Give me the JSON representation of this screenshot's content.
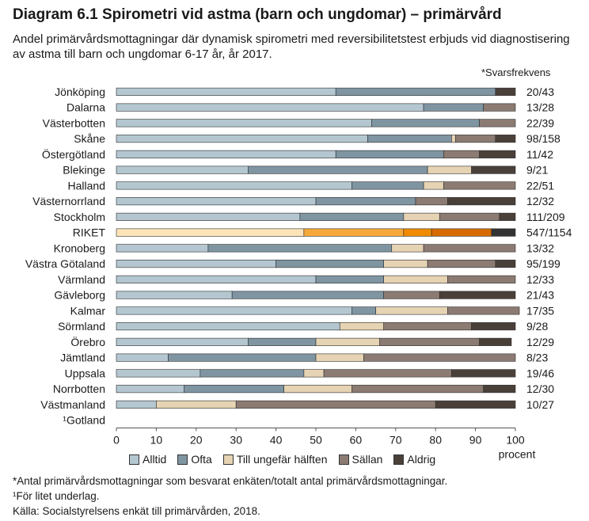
{
  "header": {
    "title": "Diagram 6.1 Spirometri vid astma (barn och ungdomar) – primärvård",
    "subtitle": "Andel primärvårdsmottagningar där dynamisk spirometri med reversibilitetstest erbjuds vid diagnostisering av astma till barn och ungdomar 6-17 år, år 2017."
  },
  "svarsfrekvens_label": "*Svarsfrekvens",
  "chart_data": {
    "type": "bar",
    "orientation": "horizontal",
    "stacked": true,
    "xlim": [
      0,
      100
    ],
    "xticks": [
      0,
      10,
      20,
      30,
      40,
      50,
      60,
      70,
      80,
      90,
      100
    ],
    "xlabel": "procent",
    "legend_position": "bottom",
    "categories": [
      "Jönköping",
      "Dalarna",
      "Västerbotten",
      "Skåne",
      "Östergötland",
      "Blekinge",
      "Halland",
      "Västernorrland",
      "Stockholm",
      "RIKET",
      "Kronoberg",
      "Västra Götaland",
      "Värmland",
      "Gävleborg",
      "Kalmar",
      "Sörmland",
      "Örebro",
      "Jämtland",
      "Uppsala",
      "Norrbotten",
      "Västmanland",
      "¹Gotland"
    ],
    "response_rates": [
      "20/43",
      "13/28",
      "22/39",
      "98/158",
      "11/42",
      "9/21",
      "22/51",
      "12/32",
      "111/209",
      "547/1154",
      "13/32",
      "95/199",
      "12/33",
      "21/43",
      "17/35",
      "9/28",
      "12/29",
      "8/23",
      "19/46",
      "12/30",
      "10/27",
      ""
    ],
    "highlight_category": "RIKET",
    "series": [
      {
        "name": "Alltid",
        "color": "#b4c7d1",
        "highlight_color": "#fde3b8",
        "values": [
          55,
          77,
          64,
          63,
          55,
          33,
          59,
          50,
          46,
          47,
          23,
          40,
          50,
          29,
          59,
          56,
          33,
          13,
          21,
          17,
          10,
          0
        ]
      },
      {
        "name": "Ofta",
        "color": "#7f95a2",
        "highlight_color": "#f6a93a",
        "values": [
          40,
          15,
          27,
          21,
          27,
          45,
          18,
          25,
          26,
          25,
          46,
          27,
          17,
          38,
          6,
          0,
          17,
          37,
          26,
          25,
          0,
          0
        ]
      },
      {
        "name": "Till ungefär hälften",
        "color": "#e6d3b3",
        "highlight_color": "#f08a00",
        "values": [
          0,
          0,
          0,
          1,
          0,
          11,
          5,
          0,
          9,
          7,
          8,
          11,
          16,
          0,
          18,
          11,
          16,
          12,
          5,
          17,
          20,
          0
        ]
      },
      {
        "name": "Sällan",
        "color": "#8c7b72",
        "highlight_color": "#d66a00",
        "values": [
          0,
          8,
          9,
          10,
          9,
          0,
          18,
          8,
          15,
          15,
          23,
          17,
          17,
          14,
          18,
          22,
          25,
          38,
          32,
          33,
          50,
          0
        ]
      },
      {
        "name": "Aldrig",
        "color": "#4a403a",
        "highlight_color": "#333333",
        "values": [
          5,
          0,
          0,
          5,
          9,
          11,
          0,
          17,
          4,
          6,
          0,
          5,
          0,
          19,
          0,
          11,
          8,
          0,
          16,
          8,
          20,
          0
        ]
      }
    ]
  },
  "footnotes": [
    "*Antal primärvårdsmottagningar som besvarat enkäten/totalt antal primärvårdsmottagningar.",
    "¹För litet underlag.",
    "Källa:  Socialstyrelsens enkät till primärvården, 2018."
  ]
}
